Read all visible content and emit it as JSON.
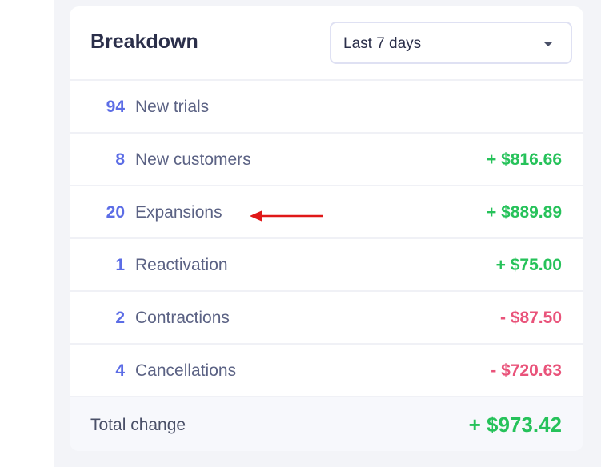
{
  "breakdown": {
    "title": "Breakdown",
    "period_select": {
      "selected": "Last 7 days"
    },
    "rows": [
      {
        "count": "94",
        "label": "New trials",
        "amount": ""
      },
      {
        "count": "8",
        "label": "New customers",
        "amount": "+ $816.66"
      },
      {
        "count": "20",
        "label": "Expansions",
        "amount": "+ $889.89"
      },
      {
        "count": "1",
        "label": "Reactivation",
        "amount": "+ $75.00"
      },
      {
        "count": "2",
        "label": "Contractions",
        "amount": "- $87.50"
      },
      {
        "count": "4",
        "label": "Cancellations",
        "amount": "- $720.63"
      }
    ],
    "total": {
      "label": "Total change",
      "amount": "+ $973.42"
    }
  },
  "colors": {
    "count": "#5c6de6",
    "positive": "#26c25a",
    "negative": "#e9537a",
    "annotation_arrow": "#e01818"
  }
}
